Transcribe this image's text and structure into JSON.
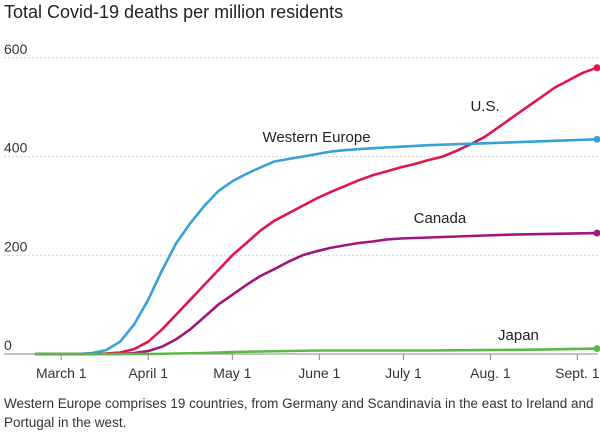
{
  "chart_data": {
    "type": "line",
    "title": "Total Covid-19 deaths per million residents",
    "note": "Western Europe comprises 19 countries, from Germany and Scandinavia in the east to Ireland and Portugal in the west.",
    "xlabel": "",
    "ylabel": "",
    "x_ticks": [
      "March 1",
      "April 1",
      "May 1",
      "June 1",
      "July 1",
      "Aug. 1",
      "Sept. 1"
    ],
    "y_ticks": [
      0,
      200,
      400,
      600
    ],
    "ylim": [
      0,
      620
    ],
    "grid": true,
    "x_unit_note": "x values are days since the first plotted date",
    "series": [
      {
        "name": "U.S.",
        "color": "#e0164a",
        "x": [
          0,
          20,
          25,
          30,
          35,
          40,
          45,
          50,
          55,
          60,
          65,
          70,
          75,
          80,
          85,
          90,
          95,
          100,
          105,
          110,
          115,
          120,
          125,
          130,
          135,
          140,
          145,
          150,
          155,
          160,
          165,
          170,
          175,
          180,
          185,
          190,
          195,
          200
        ],
        "values": [
          0,
          0,
          1,
          3,
          10,
          25,
          50,
          80,
          110,
          140,
          170,
          200,
          225,
          250,
          270,
          285,
          300,
          315,
          328,
          340,
          352,
          362,
          370,
          378,
          385,
          393,
          400,
          412,
          425,
          440,
          460,
          480,
          500,
          520,
          540,
          555,
          570,
          580
        ]
      },
      {
        "name": "Western Europe",
        "color": "#36a2d9",
        "x": [
          0,
          15,
          20,
          25,
          30,
          35,
          40,
          45,
          50,
          55,
          60,
          65,
          70,
          75,
          80,
          85,
          90,
          95,
          100,
          105,
          110,
          115,
          120,
          130,
          140,
          150,
          160,
          170,
          180,
          190,
          200
        ],
        "values": [
          0,
          0,
          2,
          8,
          25,
          60,
          110,
          170,
          225,
          265,
          300,
          330,
          350,
          365,
          378,
          390,
          395,
          400,
          405,
          410,
          413,
          415,
          417,
          420,
          423,
          425,
          427,
          429,
          431,
          433,
          435
        ]
      },
      {
        "name": "Canada",
        "color": "#a0167f",
        "x": [
          0,
          30,
          35,
          40,
          45,
          50,
          55,
          60,
          65,
          70,
          75,
          80,
          85,
          90,
          95,
          100,
          105,
          110,
          115,
          120,
          125,
          130,
          140,
          150,
          160,
          170,
          180,
          190,
          200
        ],
        "values": [
          0,
          0,
          2,
          6,
          15,
          30,
          50,
          75,
          100,
          120,
          140,
          158,
          172,
          187,
          200,
          208,
          215,
          220,
          225,
          228,
          232,
          234,
          236,
          238,
          240,
          242,
          243,
          244,
          245
        ]
      },
      {
        "name": "Japan",
        "color": "#5bb847",
        "x": [
          0,
          40,
          50,
          60,
          70,
          80,
          90,
          100,
          120,
          140,
          160,
          180,
          200
        ],
        "values": [
          0,
          0,
          1,
          2,
          4,
          5,
          6,
          7,
          7,
          7,
          8,
          9,
          11
        ]
      }
    ]
  }
}
